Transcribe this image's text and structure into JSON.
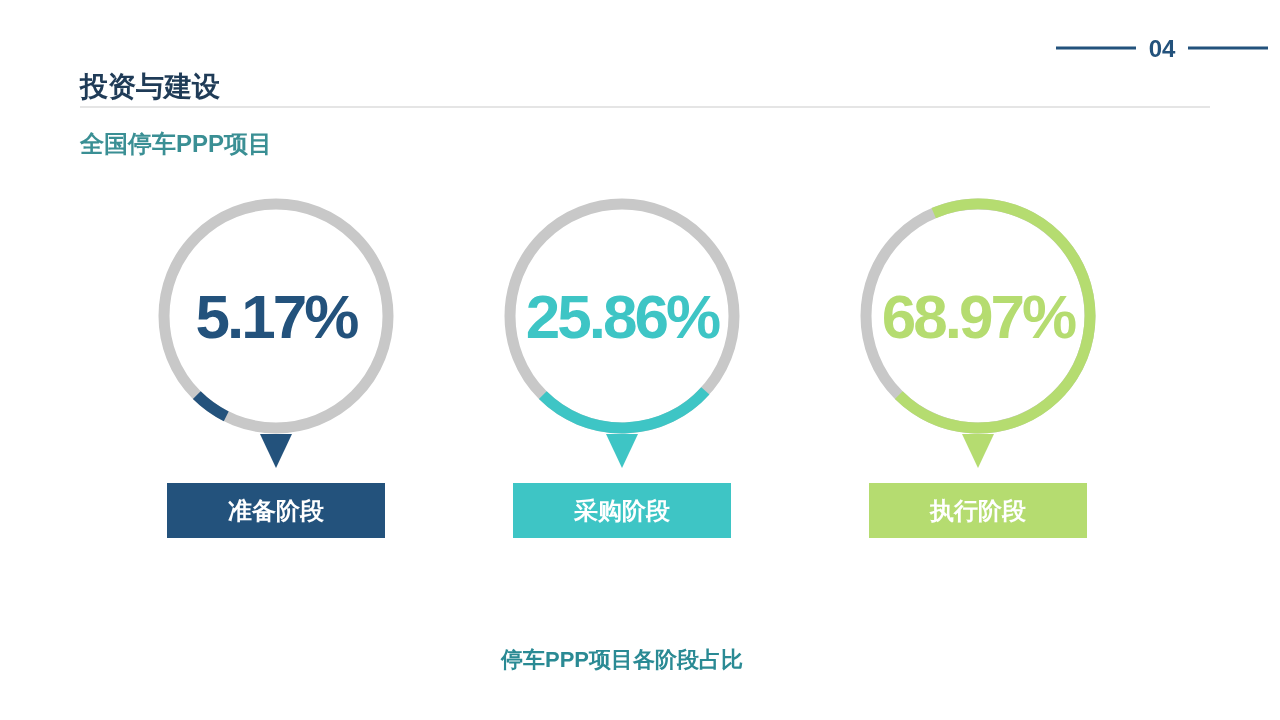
{
  "chart_data": {
    "type": "other",
    "title": "投资与建设",
    "subtitle": "全国停车PPP项目",
    "categories": [
      "准备阶段",
      "采购阶段",
      "执行阶段"
    ],
    "values": [
      5.17,
      25.86,
      68.97
    ],
    "colors": [
      "#23527c",
      "#3ec5c5",
      "#b5dc70"
    ],
    "value_labels": [
      "5.17%",
      "25.86%",
      "68.97%"
    ],
    "annotations": [
      "停车PPP项目各阶段占比",
      "04"
    ]
  }
}
